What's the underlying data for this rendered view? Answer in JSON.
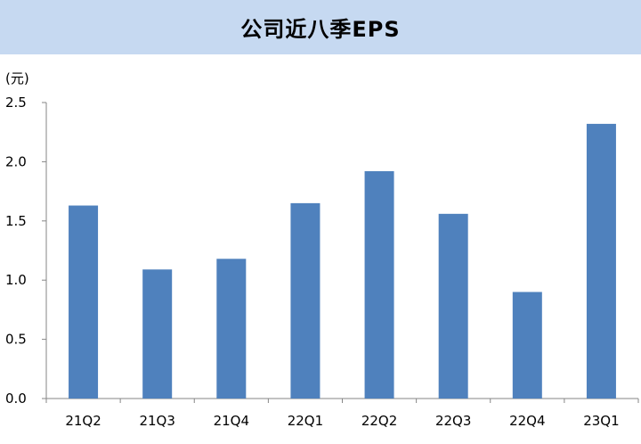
{
  "title": "公司近八季EPS",
  "unit_label": "(元)",
  "colors": {
    "title_background": "#c6d9f1",
    "bar": "#4f81bd",
    "axis": "#868686"
  },
  "chart_data": {
    "type": "bar",
    "title": "公司近八季EPS",
    "xlabel": "",
    "ylabel": "(元)",
    "categories": [
      "21Q2",
      "21Q3",
      "21Q4",
      "22Q1",
      "22Q2",
      "22Q3",
      "22Q4",
      "23Q1"
    ],
    "values": [
      1.63,
      1.09,
      1.18,
      1.65,
      1.92,
      1.56,
      0.9,
      2.32
    ],
    "ylim": [
      0,
      2.5
    ],
    "yticks": [
      "0.0",
      "0.5",
      "1.0",
      "1.5",
      "2.0",
      "2.5"
    ],
    "grid": false,
    "legend": "none"
  }
}
